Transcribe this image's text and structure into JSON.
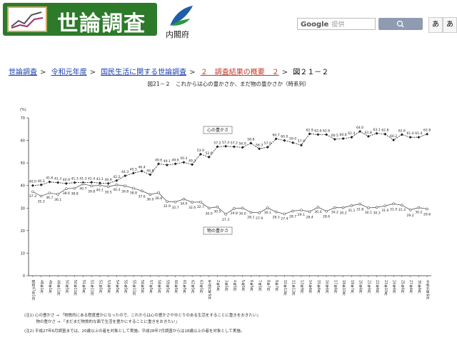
{
  "header": {
    "logo_text": "世論調査",
    "agency": "内閣府",
    "search_brand": "Google",
    "search_placeholder": "提供",
    "font_buttons": [
      "あ",
      "あ"
    ]
  },
  "breadcrumb": [
    "世論調査",
    "令和元年度",
    "国民生活に関する世論調査",
    "２　調査結果の概要　２",
    "図２１－２"
  ],
  "notes": [
    "(注1) 心の豊かさ → 「物質的にある程度豊かになったので、これからは心の豊かさやゆとりのある生活をすることに重きをおきたい」",
    "　　　物の豊かさ → 「まだまだ物質的な面で生活を豊かにすることに重きをおきたい」",
    "(注2) 平成27年6月調査までは、20歳以上の者を対象として実施。平成28年7月調査からは18歳以上の者を対象として実施。"
  ],
  "chart_data": {
    "type": "line",
    "title": "図21－２　これからは心の豊かさか、まだ物の豊かさか（時系列）",
    "y_unit": "(%)",
    "categories": [
      "昭和47年1月",
      "48年1月",
      "49年1月",
      "49年11月",
      "50年5月",
      "50年11月",
      "51年5月",
      "51年11月",
      "52年5月",
      "53年5月",
      "54年5月",
      "55年5月",
      "55年11月",
      "56年5月",
      "57年5月",
      "58年5月",
      "59年5月",
      "60年5月",
      "61年5月",
      "62年5月",
      "63年5月",
      "平成元年5月",
      "2年5月",
      "3年5月",
      "4年5月",
      "5年5月",
      "6年5月",
      "7年5月",
      "8年7月",
      "9年7月",
      "10年12月",
      "11年12月",
      "13年9月",
      "14年6月",
      "15年6月",
      "16年6月",
      "17年6月",
      "18年10月",
      "19年7月",
      "20年6月",
      "21年6月",
      "22年6月",
      "23年10月",
      "24年6月",
      "25年6月",
      "27年6月",
      "30年6月",
      "令和元年6月"
    ],
    "series": [
      {
        "name": "心の豊かさ",
        "color": "#222222",
        "values": [
          40.0,
          40.3,
          41.6,
          41.3,
          40.9,
          41.3,
          41.3,
          41.4,
          41.1,
          40.9,
          42.2,
          44.3,
          45.5,
          46.4,
          44.8,
          49.6,
          49.1,
          49.6,
          50.3,
          49.3,
          53.9,
          52.6,
          57.2,
          57.4,
          57.2,
          56.9,
          58.8,
          56.3,
          57.0,
          60.7,
          60.0,
          59.0,
          57.9,
          62.9,
          62.6,
          62.6,
          60.5,
          60.8,
          61.4,
          64.0,
          61.8,
          63.1,
          62.8,
          60.2,
          62.6,
          61.4,
          61.4,
          62.8
        ],
        "value_labels": [
          "40.0",
          "40.3",
          "41.6",
          "41.3",
          "40.9",
          "41.3",
          "41.3",
          "41.4",
          "41.1",
          "40.9",
          "42.2",
          "44.3",
          "45.5",
          "46.4",
          "44.8",
          "49.6",
          "49.1",
          "49.6",
          "50.3",
          "49.3",
          "53.9",
          "52.6",
          "57.2",
          "57.4",
          "57.2",
          "56.9",
          "58.8",
          "56.3",
          "57.0",
          "60.7",
          "60.0",
          "59.0",
          "57.9",
          "62.9",
          "62.6",
          "62.6",
          "60.5",
          "60.8",
          "61.4",
          "64.0",
          "61.8",
          "63.1",
          "62.8",
          "60.2",
          "62.6",
          "61.4",
          "61.4",
          "62.8"
        ]
      },
      {
        "name": "物の豊かさ",
        "color": "#555555",
        "values": [
          37.3,
          35.3,
          36.7,
          36.1,
          38.6,
          38.8,
          40.7,
          39.8,
          40.1,
          39.5,
          40.3,
          39.8,
          38.8,
          37.6,
          36.0,
          36.8,
          32.9,
          32.7,
          34.0,
          32.6,
          32.7,
          30.0,
          30.5,
          27.3,
          29.8,
          30.0,
          28.1,
          27.9,
          30.1,
          28.3,
          27.4,
          28.7,
          29.1,
          28.4,
          30.4,
          28.6,
          30.2,
          30.2,
          31.1,
          31.8,
          30.1,
          30.3,
          31.0,
          31.9,
          31.3,
          29.2,
          30.2,
          29.6
        ],
        "value_labels": [
          "37.3",
          "35.3",
          "36.7",
          "36.1",
          "38.6",
          "38.8",
          "40.7",
          "39.8",
          "40.1",
          "39.5",
          "40.3",
          "39.8",
          "38.8",
          "37.6",
          "36.0",
          "36.8",
          "32.9",
          "32.7",
          "34.0",
          "32.6",
          "32.7",
          "30.0",
          "30.5",
          "27.3",
          "29.8",
          "30.0",
          "28.1",
          "27.9",
          "30.1",
          "28.3",
          "27.4",
          "28.7",
          "29.1",
          "28.4",
          "30.4",
          "28.6",
          "30.2",
          "30.2",
          "31.1",
          "31.8",
          "30.1",
          "30.3",
          "31.0",
          "31.9",
          "31.3",
          "29.2",
          "30.2",
          "29.6"
        ]
      }
    ],
    "ylim": [
      0,
      70
    ],
    "yticks": [
      0,
      10,
      20,
      30,
      40,
      50,
      60,
      70
    ],
    "grid": false
  }
}
